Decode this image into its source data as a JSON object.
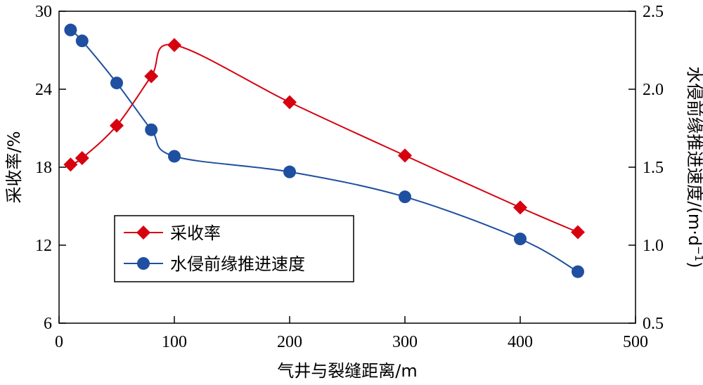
{
  "chart_data": {
    "type": "line",
    "xlabel": "气井与裂缝距离/m",
    "ylabel_left": "采收率/%",
    "ylabel_right_main": "水侵前缘推进速度/(m·d",
    "ylabel_right_sup": "−1",
    "ylabel_right_tail": ")",
    "xlim": [
      0,
      500
    ],
    "ylim_left": [
      6,
      30
    ],
    "ylim_right": [
      0.5,
      2.5
    ],
    "x_ticks": [
      "0",
      "100",
      "200",
      "300",
      "400",
      "500"
    ],
    "y_left_ticks": [
      "6",
      "12",
      "18",
      "24",
      "30"
    ],
    "y_right_ticks": [
      "0.5",
      "1.0",
      "1.5",
      "2.0",
      "2.5"
    ],
    "grid": false,
    "legend_position": "center-left",
    "series": [
      {
        "name": "采收率",
        "axis": "left",
        "color": "#d7000f",
        "marker": "diamond",
        "x": [
          10,
          20,
          50,
          80,
          100,
          200,
          300,
          400,
          450
        ],
        "y": [
          18.2,
          18.7,
          21.2,
          25.0,
          27.4,
          23.0,
          18.9,
          14.9,
          13.0
        ]
      },
      {
        "name": "水侵前缘推进速度",
        "axis": "right",
        "color": "#1f4fa0",
        "marker": "circle",
        "x": [
          10,
          20,
          50,
          80,
          100,
          200,
          300,
          400,
          450
        ],
        "y": [
          2.38,
          2.31,
          2.04,
          1.74,
          1.57,
          1.47,
          1.31,
          1.04,
          0.83
        ]
      }
    ]
  }
}
